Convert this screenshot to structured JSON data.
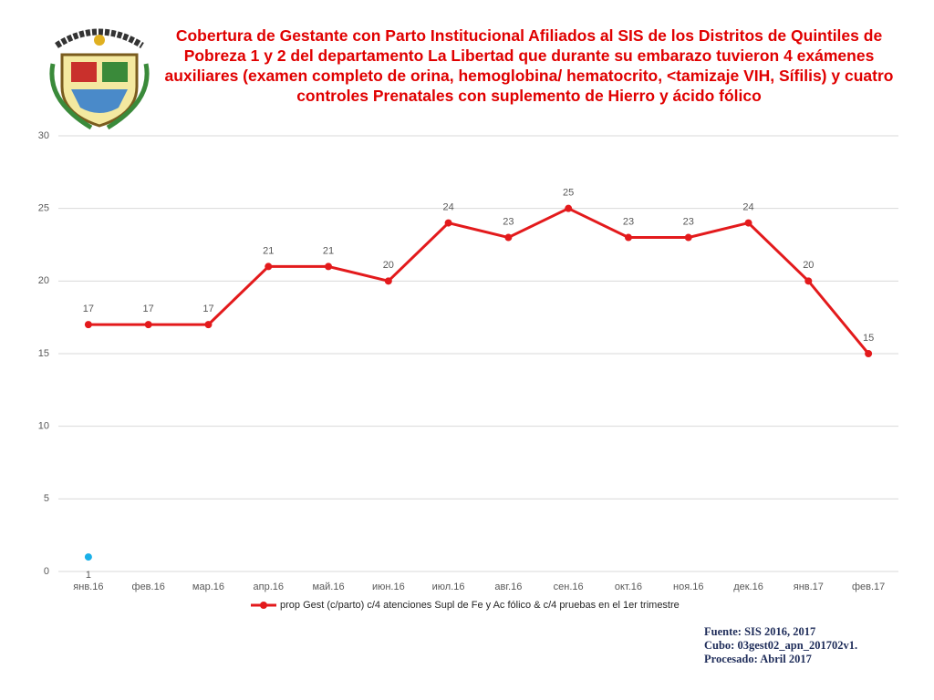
{
  "chart_data": {
    "type": "line",
    "title": "Cobertura de Gestante con  Parto Institucional  Afiliados al SIS de los Distritos de Quintiles de Pobreza 1 y 2  del departamento La Libertad que durante su embarazo tuvieron 4 exámenes auxiliares (examen completo de orina, hemoglobina/ hematocrito, <tamizaje VIH, Sífilis) y cuatro controles Prenatales con suplemento de Hierro y ácido fólico",
    "categories": [
      "янв.16",
      "фев.16",
      "мар.16",
      "апр.16",
      "май.16",
      "июн.16",
      "июл.16",
      "авг.16",
      "сен.16",
      "окт.16",
      "ноя.16",
      "дек.16",
      "янв.17",
      "фев.17"
    ],
    "series": [
      {
        "name": "prop Gest (c/parto) c/4 atenciones Supl de Fe y Ac fólico & c/4 pruebas en el 1er trimestre",
        "color": "#e31a1c",
        "values": [
          17,
          17,
          17,
          21,
          21,
          20,
          24,
          23,
          25,
          23,
          23,
          24,
          20,
          15
        ]
      },
      {
        "color": "#1ab0e8",
        "values": [
          1,
          null,
          null,
          null,
          null,
          null,
          null,
          null,
          null,
          null,
          null,
          null,
          null,
          null
        ]
      }
    ],
    "ylim": [
      0,
      30
    ],
    "yticks": [
      0,
      5,
      10,
      15,
      20,
      25,
      30
    ],
    "grid": true,
    "legend": "bottom",
    "source": [
      "Fuente: SIS 2016, 2017",
      "Cubo: 03gest02_apn_201702v1.",
      "Procesado: Abril 2017"
    ]
  }
}
